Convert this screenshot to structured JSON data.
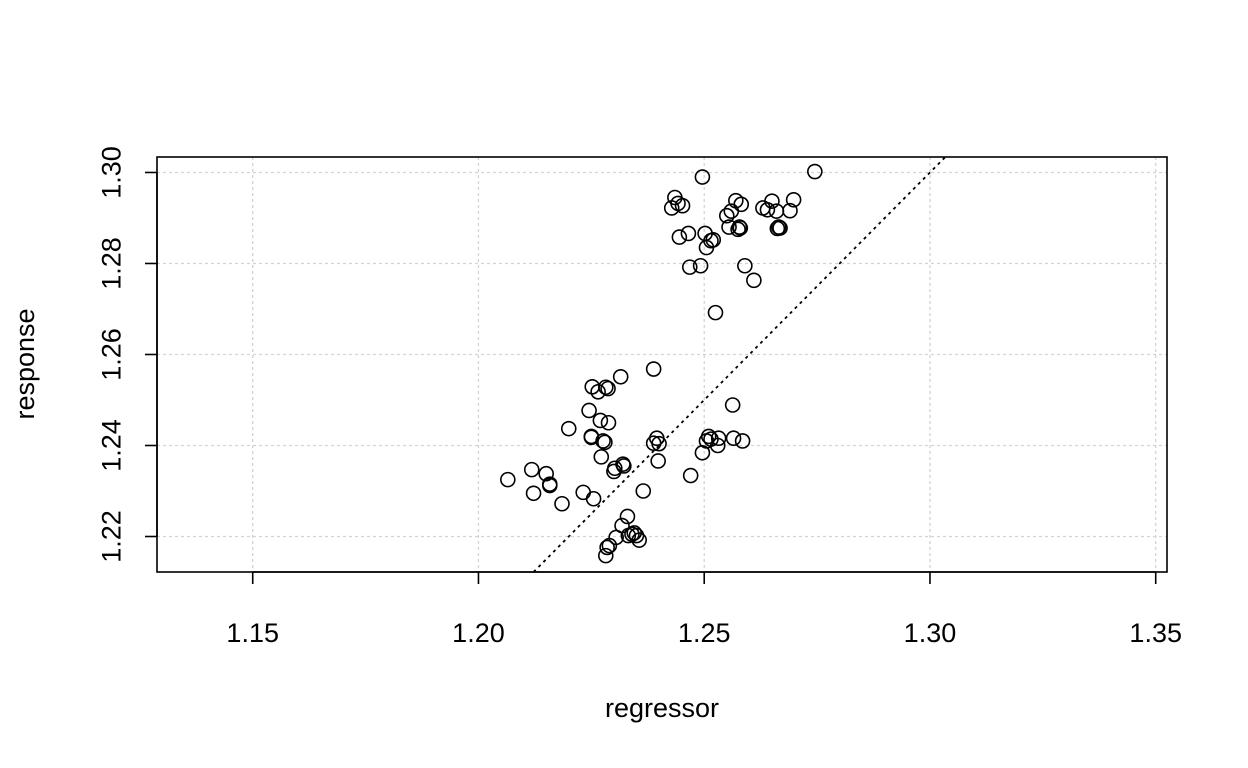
{
  "chart_data": {
    "type": "scatter",
    "title": "",
    "xlabel": "regressor",
    "ylabel": "response",
    "xlim": [
      1.1288,
      1.3525
    ],
    "ylim": [
      1.2122,
      1.3034
    ],
    "x_ticks": [
      "1.15",
      "1.20",
      "1.25",
      "1.30",
      "1.35"
    ],
    "x_tick_values": [
      1.15,
      1.2,
      1.25,
      1.3,
      1.35
    ],
    "y_ticks": [
      "1.22",
      "1.24",
      "1.26",
      "1.28",
      "1.30"
    ],
    "y_tick_values": [
      1.22,
      1.24,
      1.26,
      1.28,
      1.3
    ],
    "grid": true,
    "grid_style": "dotted",
    "grid_color": "#d3d3d3",
    "marker": "open-circle",
    "point_color": "#000000",
    "reference_line": {
      "style": "dotted",
      "color": "#000000",
      "slope": 1,
      "intercept": 0
    },
    "points": [
      [
        1.2065,
        1.2325
      ],
      [
        1.2118,
        1.2347
      ],
      [
        1.2122,
        1.2295
      ],
      [
        1.215,
        1.2338
      ],
      [
        1.2158,
        1.2315
      ],
      [
        1.2158,
        1.2312
      ],
      [
        1.2185,
        1.2272
      ],
      [
        1.22,
        1.2437
      ],
      [
        1.2232,
        1.2297
      ],
      [
        1.2245,
        1.2477
      ],
      [
        1.225,
        1.242
      ],
      [
        1.225,
        1.2418
      ],
      [
        1.2252,
        1.2529
      ],
      [
        1.2255,
        1.2283
      ],
      [
        1.2265,
        1.2518
      ],
      [
        1.227,
        1.2455
      ],
      [
        1.2272,
        1.2375
      ],
      [
        1.2276,
        1.241
      ],
      [
        1.228,
        1.2407
      ],
      [
        1.2282,
        1.2528
      ],
      [
        1.2287,
        1.2525
      ],
      [
        1.2288,
        1.245
      ],
      [
        1.2282,
        1.2158
      ],
      [
        1.2285,
        1.2176
      ],
      [
        1.229,
        1.218
      ],
      [
        1.23,
        1.2343
      ],
      [
        1.2302,
        1.235
      ],
      [
        1.2305,
        1.2198
      ],
      [
        1.2315,
        1.2551
      ],
      [
        1.2318,
        1.2224
      ],
      [
        1.232,
        1.2359
      ],
      [
        1.2322,
        1.2355
      ],
      [
        1.233,
        1.2244
      ],
      [
        1.2332,
        1.2202
      ],
      [
        1.234,
        1.2205
      ],
      [
        1.2345,
        1.2208
      ],
      [
        1.235,
        1.2202
      ],
      [
        1.2356,
        1.2192
      ],
      [
        1.2365,
        1.23
      ],
      [
        1.2388,
        1.2568
      ],
      [
        1.2388,
        1.2405
      ],
      [
        1.2395,
        1.2416
      ],
      [
        1.2398,
        1.2366
      ],
      [
        1.24,
        1.2404
      ],
      [
        1.247,
        1.2334
      ],
      [
        1.2496,
        1.2384
      ],
      [
        1.2505,
        1.241
      ],
      [
        1.251,
        1.242
      ],
      [
        1.2515,
        1.2414
      ],
      [
        1.253,
        1.24
      ],
      [
        1.2532,
        1.2416
      ],
      [
        1.2563,
        1.2489
      ],
      [
        1.2565,
        1.2416
      ],
      [
        1.2585,
        1.241
      ],
      [
        1.2525,
        1.2692
      ],
      [
        1.2428,
        1.2922
      ],
      [
        1.2435,
        1.2945
      ],
      [
        1.2442,
        1.2932
      ],
      [
        1.2445,
        1.2858
      ],
      [
        1.2452,
        1.2927
      ],
      [
        1.2465,
        1.2866
      ],
      [
        1.2468,
        1.2792
      ],
      [
        1.2492,
        1.2795
      ],
      [
        1.2496,
        1.299
      ],
      [
        1.2502,
        1.2866
      ],
      [
        1.2505,
        1.2835
      ],
      [
        1.2515,
        1.285
      ],
      [
        1.252,
        1.2852
      ],
      [
        1.255,
        1.2905
      ],
      [
        1.2555,
        1.288
      ],
      [
        1.256,
        1.2915
      ],
      [
        1.257,
        1.2938
      ],
      [
        1.2575,
        1.2875
      ],
      [
        1.2578,
        1.288
      ],
      [
        1.258,
        1.2878
      ],
      [
        1.2582,
        1.293
      ],
      [
        1.259,
        1.2795
      ],
      [
        1.261,
        1.2763
      ],
      [
        1.263,
        1.2922
      ],
      [
        1.264,
        1.2918
      ],
      [
        1.265,
        1.2937
      ],
      [
        1.266,
        1.2915
      ],
      [
        1.2662,
        1.2877
      ],
      [
        1.2665,
        1.288
      ],
      [
        1.2668,
        1.2878
      ],
      [
        1.269,
        1.2916
      ],
      [
        1.2698,
        1.294
      ],
      [
        1.2745,
        1.3002
      ]
    ]
  }
}
